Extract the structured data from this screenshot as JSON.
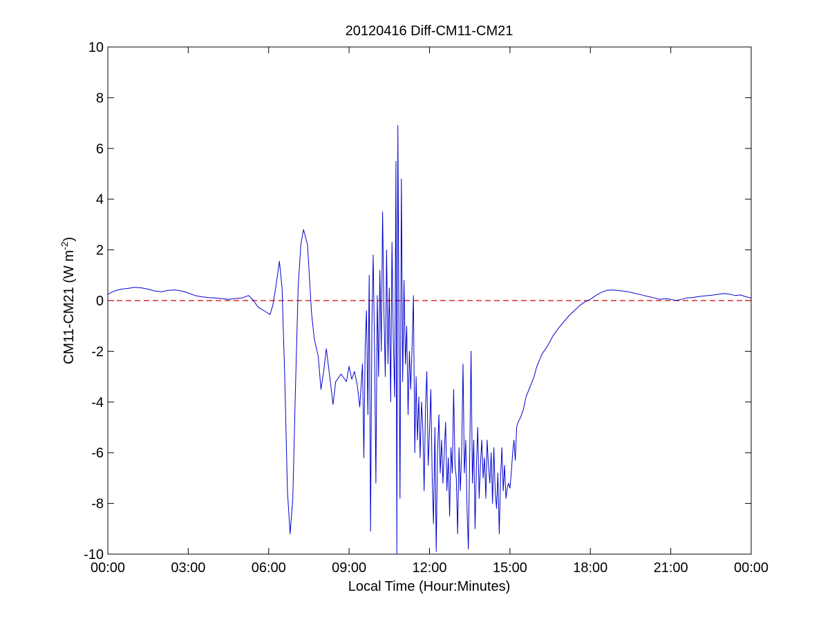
{
  "chart_data": {
    "type": "line",
    "title": "20120416 Diff-CM11-CM21",
    "xlabel": "Local Time (Hour:Minutes)",
    "ylabel": {
      "main": "CM11-CM21 (W m",
      "superscript": "-2",
      "close": ")"
    },
    "xlim": [
      0,
      24
    ],
    "ylim": [
      -10,
      10
    ],
    "x_unit": "hours",
    "x_ticks": [
      0,
      3,
      6,
      9,
      12,
      15,
      18,
      21,
      24
    ],
    "x_tick_labels": [
      "00:00",
      "03:00",
      "06:00",
      "09:00",
      "12:00",
      "15:00",
      "18:00",
      "21:00",
      "00:00"
    ],
    "y_ticks": [
      -10,
      -8,
      -6,
      -4,
      -2,
      0,
      2,
      4,
      6,
      8,
      10
    ],
    "y_tick_labels": [
      "-10",
      "-8",
      "-6",
      "-4",
      "-2",
      "0",
      "2",
      "4",
      "6",
      "8",
      "10"
    ],
    "grid": false,
    "reference_line": {
      "y": 0,
      "style": "dashed",
      "color": "#cc0000"
    },
    "series": [
      {
        "color": "#0000cc",
        "points": [
          [
            0.0,
            0.25
          ],
          [
            0.25,
            0.38
          ],
          [
            0.5,
            0.45
          ],
          [
            0.75,
            0.48
          ],
          [
            1.0,
            0.52
          ],
          [
            1.25,
            0.5
          ],
          [
            1.5,
            0.45
          ],
          [
            1.75,
            0.38
          ],
          [
            2.0,
            0.35
          ],
          [
            2.25,
            0.4
          ],
          [
            2.5,
            0.42
          ],
          [
            2.75,
            0.38
          ],
          [
            3.0,
            0.3
          ],
          [
            3.25,
            0.2
          ],
          [
            3.5,
            0.15
          ],
          [
            3.75,
            0.12
          ],
          [
            4.0,
            0.1
          ],
          [
            4.25,
            0.08
          ],
          [
            4.5,
            0.05
          ],
          [
            4.75,
            0.08
          ],
          [
            5.0,
            0.1
          ],
          [
            5.25,
            0.2
          ],
          [
            5.4,
            0.05
          ],
          [
            5.6,
            -0.25
          ],
          [
            5.9,
            -0.45
          ],
          [
            6.05,
            -0.55
          ],
          [
            6.15,
            -0.2
          ],
          [
            6.25,
            0.4
          ],
          [
            6.4,
            1.55
          ],
          [
            6.5,
            0.5
          ],
          [
            6.6,
            -3.0
          ],
          [
            6.7,
            -7.5
          ],
          [
            6.8,
            -9.2
          ],
          [
            6.9,
            -7.8
          ],
          [
            7.0,
            -3.5
          ],
          [
            7.1,
            0.5
          ],
          [
            7.2,
            2.2
          ],
          [
            7.3,
            2.8
          ],
          [
            7.45,
            2.2
          ],
          [
            7.6,
            -0.5
          ],
          [
            7.7,
            -1.5
          ],
          [
            7.85,
            -2.2
          ],
          [
            7.95,
            -3.5
          ],
          [
            8.05,
            -2.8
          ],
          [
            8.15,
            -1.9
          ],
          [
            8.3,
            -3.2
          ],
          [
            8.4,
            -4.1
          ],
          [
            8.5,
            -3.2
          ],
          [
            8.7,
            -2.9
          ],
          [
            8.9,
            -3.2
          ],
          [
            9.0,
            -2.6
          ],
          [
            9.1,
            -3.1
          ],
          [
            9.2,
            -2.8
          ],
          [
            9.3,
            -3.3
          ],
          [
            9.4,
            -4.2
          ],
          [
            9.5,
            -2.5
          ],
          [
            9.55,
            -6.2
          ],
          [
            9.6,
            -1.8
          ],
          [
            9.65,
            -0.4
          ],
          [
            9.7,
            -4.5
          ],
          [
            9.75,
            1.0
          ],
          [
            9.8,
            -9.1
          ],
          [
            9.85,
            -1.0
          ],
          [
            9.9,
            1.8
          ],
          [
            9.95,
            -2.0
          ],
          [
            10.0,
            -7.2
          ],
          [
            10.05,
            0.2
          ],
          [
            10.1,
            -3.0
          ],
          [
            10.15,
            1.2
          ],
          [
            10.2,
            -2.0
          ],
          [
            10.25,
            3.5
          ],
          [
            10.3,
            -0.5
          ],
          [
            10.35,
            -3.0
          ],
          [
            10.4,
            2.0
          ],
          [
            10.45,
            -2.5
          ],
          [
            10.5,
            0.5
          ],
          [
            10.55,
            -4.0
          ],
          [
            10.6,
            2.3
          ],
          [
            10.65,
            -1.5
          ],
          [
            10.7,
            -3.8
          ],
          [
            10.75,
            5.5
          ],
          [
            10.78,
            -10.0
          ],
          [
            10.82,
            6.9
          ],
          [
            10.86,
            -1.0
          ],
          [
            10.9,
            -7.8
          ],
          [
            10.95,
            4.8
          ],
          [
            11.0,
            -3.2
          ],
          [
            11.05,
            0.8
          ],
          [
            11.1,
            -2.5
          ],
          [
            11.15,
            -1.0
          ],
          [
            11.2,
            -4.5
          ],
          [
            11.25,
            -2.0
          ],
          [
            11.3,
            -3.5
          ],
          [
            11.35,
            -1.8
          ],
          [
            11.4,
            0.2
          ],
          [
            11.45,
            -6.0
          ],
          [
            11.5,
            -3.0
          ],
          [
            11.55,
            -5.5
          ],
          [
            11.6,
            -3.8
          ],
          [
            11.65,
            -6.2
          ],
          [
            11.7,
            -4.0
          ],
          [
            11.75,
            -5.0
          ],
          [
            11.8,
            -7.5
          ],
          [
            11.85,
            -4.2
          ],
          [
            11.9,
            -2.8
          ],
          [
            11.95,
            -6.5
          ],
          [
            12.0,
            -5.2
          ],
          [
            12.05,
            -3.5
          ],
          [
            12.1,
            -7.0
          ],
          [
            12.15,
            -8.8
          ],
          [
            12.2,
            -5.0
          ],
          [
            12.25,
            -9.9
          ],
          [
            12.3,
            -6.0
          ],
          [
            12.35,
            -4.5
          ],
          [
            12.4,
            -6.8
          ],
          [
            12.45,
            -5.5
          ],
          [
            12.5,
            -7.2
          ],
          [
            12.55,
            -6.0
          ],
          [
            12.6,
            -4.8
          ],
          [
            12.65,
            -7.5
          ],
          [
            12.7,
            -6.2
          ],
          [
            12.75,
            -8.5
          ],
          [
            12.8,
            -5.8
          ],
          [
            12.85,
            -6.8
          ],
          [
            12.9,
            -3.5
          ],
          [
            12.95,
            -6.5
          ],
          [
            13.0,
            -7.0
          ],
          [
            13.05,
            -9.2
          ],
          [
            13.1,
            -5.8
          ],
          [
            13.15,
            -7.5
          ],
          [
            13.2,
            -6.0
          ],
          [
            13.25,
            -2.5
          ],
          [
            13.3,
            -6.8
          ],
          [
            13.35,
            -5.5
          ],
          [
            13.4,
            -8.2
          ],
          [
            13.45,
            -9.8
          ],
          [
            13.5,
            -6.0
          ],
          [
            13.55,
            -2.0
          ],
          [
            13.6,
            -7.2
          ],
          [
            13.65,
            -5.5
          ],
          [
            13.7,
            -9.0
          ],
          [
            13.75,
            -6.5
          ],
          [
            13.8,
            -5.0
          ],
          [
            13.85,
            -7.8
          ],
          [
            13.9,
            -6.5
          ],
          [
            13.95,
            -5.5
          ],
          [
            14.0,
            -7.0
          ],
          [
            14.05,
            -6.2
          ],
          [
            14.1,
            -7.8
          ],
          [
            14.15,
            -5.5
          ],
          [
            14.2,
            -6.5
          ],
          [
            14.25,
            -7.2
          ],
          [
            14.3,
            -6.0
          ],
          [
            14.35,
            -8.0
          ],
          [
            14.4,
            -5.8
          ],
          [
            14.45,
            -7.5
          ],
          [
            14.5,
            -8.2
          ],
          [
            14.55,
            -6.8
          ],
          [
            14.6,
            -9.2
          ],
          [
            14.65,
            -7.0
          ],
          [
            14.7,
            -5.8
          ],
          [
            14.75,
            -7.5
          ],
          [
            14.8,
            -6.5
          ],
          [
            14.85,
            -7.8
          ],
          [
            14.9,
            -7.4
          ],
          [
            14.95,
            -7.2
          ],
          [
            15.0,
            -7.4
          ],
          [
            15.05,
            -6.8
          ],
          [
            15.1,
            -6.0
          ],
          [
            15.15,
            -5.5
          ],
          [
            15.2,
            -6.3
          ],
          [
            15.25,
            -5.0
          ],
          [
            15.3,
            -4.8
          ],
          [
            15.4,
            -4.6
          ],
          [
            15.5,
            -4.3
          ],
          [
            15.6,
            -3.8
          ],
          [
            15.75,
            -3.4
          ],
          [
            15.9,
            -3.0
          ],
          [
            16.0,
            -2.6
          ],
          [
            16.2,
            -2.1
          ],
          [
            16.4,
            -1.8
          ],
          [
            16.6,
            -1.4
          ],
          [
            16.8,
            -1.1
          ],
          [
            17.0,
            -0.85
          ],
          [
            17.2,
            -0.6
          ],
          [
            17.4,
            -0.4
          ],
          [
            17.6,
            -0.2
          ],
          [
            17.8,
            -0.05
          ],
          [
            18.0,
            0.05
          ],
          [
            18.2,
            0.2
          ],
          [
            18.4,
            0.32
          ],
          [
            18.6,
            0.4
          ],
          [
            18.8,
            0.42
          ],
          [
            19.0,
            0.4
          ],
          [
            19.2,
            0.38
          ],
          [
            19.4,
            0.35
          ],
          [
            19.6,
            0.3
          ],
          [
            19.8,
            0.25
          ],
          [
            20.0,
            0.2
          ],
          [
            20.2,
            0.15
          ],
          [
            20.4,
            0.1
          ],
          [
            20.6,
            0.05
          ],
          [
            20.8,
            0.08
          ],
          [
            21.0,
            0.05
          ],
          [
            21.2,
            0.0
          ],
          [
            21.4,
            0.05
          ],
          [
            21.6,
            0.1
          ],
          [
            21.8,
            0.12
          ],
          [
            22.0,
            0.15
          ],
          [
            22.2,
            0.18
          ],
          [
            22.4,
            0.2
          ],
          [
            22.6,
            0.22
          ],
          [
            22.8,
            0.25
          ],
          [
            23.0,
            0.28
          ],
          [
            23.2,
            0.25
          ],
          [
            23.4,
            0.2
          ],
          [
            23.6,
            0.22
          ],
          [
            23.8,
            0.15
          ],
          [
            24.0,
            0.1
          ]
        ]
      }
    ]
  }
}
